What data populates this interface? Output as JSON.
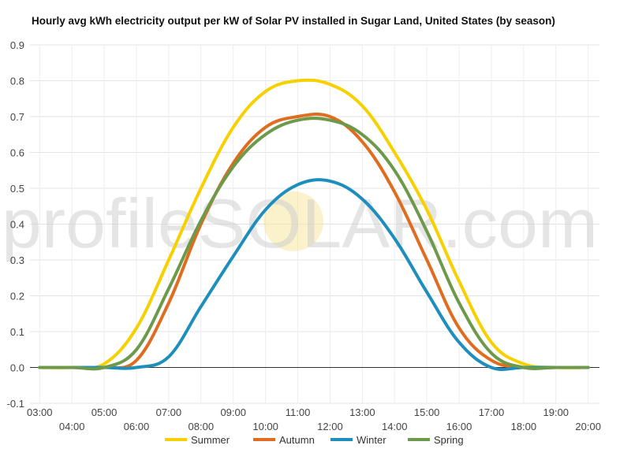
{
  "title": "Hourly avg kWh electricity output per kW of Solar PV installed in Sugar Land, United States (by season)",
  "watermark": "profileSOLAR.com",
  "chart_data": {
    "type": "line",
    "title": "Hourly avg kWh electricity output per kW of Solar PV installed in Sugar Land, United States (by season)",
    "xlabel": "",
    "ylabel": "",
    "ylim": [
      -0.1,
      0.9
    ],
    "y_ticks": [
      "-0.1",
      "0.0",
      "0.1",
      "0.2",
      "0.3",
      "0.4",
      "0.5",
      "0.6",
      "0.7",
      "0.8",
      "0.9"
    ],
    "x_ticks": [
      "03:00",
      "04:00",
      "05:00",
      "06:00",
      "07:00",
      "08:00",
      "09:00",
      "10:00",
      "11:00",
      "12:00",
      "13:00",
      "14:00",
      "15:00",
      "16:00",
      "17:00",
      "18:00",
      "19:00",
      "20:00"
    ],
    "grid": true,
    "legend_position": "bottom",
    "x": [
      3,
      4,
      5,
      6,
      7,
      8,
      9,
      10,
      11,
      12,
      13,
      14,
      15,
      16,
      17,
      18,
      19,
      20
    ],
    "series": [
      {
        "name": "Summer",
        "color": "#f7d000",
        "values": [
          0,
          0,
          0.01,
          0.11,
          0.3,
          0.5,
          0.67,
          0.77,
          0.8,
          0.79,
          0.73,
          0.6,
          0.44,
          0.24,
          0.07,
          0.01,
          0,
          0
        ]
      },
      {
        "name": "Autumn",
        "color": "#e06c1f",
        "values": [
          0,
          0,
          0,
          0.02,
          0.18,
          0.4,
          0.57,
          0.67,
          0.7,
          0.7,
          0.63,
          0.49,
          0.3,
          0.11,
          0.02,
          0,
          0,
          0
        ]
      },
      {
        "name": "Winter",
        "color": "#1e8fbd",
        "values": [
          0,
          0,
          0,
          0,
          0.03,
          0.17,
          0.31,
          0.44,
          0.51,
          0.52,
          0.47,
          0.36,
          0.21,
          0.07,
          0,
          0,
          0,
          0
        ]
      },
      {
        "name": "Spring",
        "color": "#6d9a4a",
        "values": [
          0,
          0,
          0,
          0.05,
          0.22,
          0.41,
          0.56,
          0.65,
          0.69,
          0.69,
          0.65,
          0.55,
          0.38,
          0.18,
          0.04,
          0,
          0,
          0
        ]
      }
    ]
  }
}
